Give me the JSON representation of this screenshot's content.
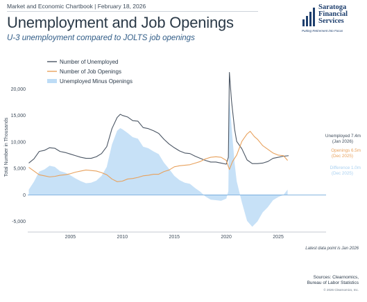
{
  "header": {
    "dateline": "Market and Economic Chartbook | February 18, 2026",
    "title": "Unemployment and Job Openings",
    "subtitle": "U-3 unemployment compared to JOLTS job openings"
  },
  "logo": {
    "line1": "Saratoga",
    "line2": "Financial",
    "line3": "Services",
    "tagline": "Putting Retirement into Focus",
    "color": "#1e3f6e"
  },
  "footer": {
    "note": "Latest data point is Jan 2026",
    "sources_line1": "Sources: Clearnomics,",
    "sources_line2": "Bureau of Labor Statistics",
    "copyright": "© 2026 Clearnomics, Inc."
  },
  "chart_data": {
    "type": "line",
    "ylabel": "Total Number in Thousands",
    "xlim": [
      2000.9,
      2029.6
    ],
    "ylim": [
      -7000,
      25000
    ],
    "x_ticks": [
      2005,
      2010,
      2015,
      2020,
      2025
    ],
    "y_ticks": [
      -5000,
      0,
      5000,
      10000,
      15000,
      20000
    ],
    "y_tick_labels": [
      "-5,000",
      "0",
      "5,000",
      "10,000",
      "15,000",
      "20,000"
    ],
    "grid": false,
    "legend_position": "top-left",
    "colors": {
      "unemployed": "#4a5563",
      "openings": "#e8a15c",
      "difference": "#bddcf6",
      "zero_line": "#5b9bd5"
    },
    "series": [
      {
        "name": "Number of Unemployed",
        "style": "line",
        "x": [
          2001.0,
          2001.5,
          2002.0,
          2002.5,
          2003.0,
          2003.5,
          2004.0,
          2004.5,
          2005.0,
          2005.5,
          2006.0,
          2006.5,
          2007.0,
          2007.5,
          2008.0,
          2008.5,
          2009.0,
          2009.5,
          2009.8,
          2010.0,
          2010.5,
          2011.0,
          2011.5,
          2012.0,
          2012.5,
          2013.0,
          2013.5,
          2014.0,
          2014.5,
          2015.0,
          2015.5,
          2016.0,
          2016.5,
          2017.0,
          2017.5,
          2018.0,
          2018.5,
          2019.0,
          2019.5,
          2020.0,
          2020.2,
          2020.3,
          2020.5,
          2020.8,
          2021.0,
          2021.5,
          2022.0,
          2022.5,
          2023.0,
          2023.5,
          2024.0,
          2024.5,
          2025.0,
          2025.5,
          2026.0
        ],
        "values": [
          6000,
          6800,
          8200,
          8400,
          8900,
          8800,
          8200,
          8000,
          7700,
          7400,
          7100,
          6900,
          6900,
          7200,
          7800,
          9100,
          12500,
          14600,
          15200,
          15000,
          14700,
          14000,
          13900,
          12700,
          12500,
          12100,
          11600,
          10500,
          9600,
          8900,
          8300,
          7900,
          7800,
          7300,
          6900,
          6500,
          6200,
          6200,
          6000,
          5800,
          7100,
          23100,
          17800,
          12400,
          10100,
          8700,
          6600,
          5900,
          5900,
          6000,
          6300,
          6900,
          7100,
          7300,
          7400
        ]
      },
      {
        "name": "Number of Job Openings",
        "style": "line",
        "x": [
          2001.0,
          2001.5,
          2002.0,
          2002.5,
          2003.0,
          2003.5,
          2004.0,
          2004.5,
          2005.0,
          2005.5,
          2006.0,
          2006.5,
          2007.0,
          2007.5,
          2008.0,
          2008.5,
          2009.0,
          2009.5,
          2010.0,
          2010.5,
          2011.0,
          2011.5,
          2012.0,
          2012.5,
          2013.0,
          2013.5,
          2014.0,
          2014.5,
          2015.0,
          2015.5,
          2016.0,
          2016.5,
          2017.0,
          2017.5,
          2018.0,
          2018.5,
          2019.0,
          2019.5,
          2020.0,
          2020.3,
          2020.6,
          2021.0,
          2021.5,
          2022.0,
          2022.3,
          2022.7,
          2023.0,
          2023.5,
          2024.0,
          2024.5,
          2025.0,
          2025.5,
          2025.9
        ],
        "values": [
          5200,
          4500,
          3800,
          3600,
          3400,
          3500,
          3700,
          3800,
          4000,
          4300,
          4500,
          4700,
          4600,
          4500,
          4200,
          3800,
          3000,
          2500,
          2600,
          3000,
          3100,
          3300,
          3600,
          3700,
          3900,
          3900,
          4400,
          4700,
          5300,
          5500,
          5600,
          5700,
          6000,
          6300,
          6800,
          7100,
          7200,
          7100,
          6500,
          4800,
          6300,
          7500,
          10100,
          11500,
          12000,
          11000,
          10500,
          9300,
          8600,
          7900,
          7500,
          7400,
          6500
        ]
      },
      {
        "name": "Unemployed Minus Openings",
        "style": "area",
        "x": [
          2001.0,
          2001.5,
          2002.0,
          2002.5,
          2003.0,
          2003.5,
          2004.0,
          2004.5,
          2005.0,
          2005.5,
          2006.0,
          2006.5,
          2007.0,
          2007.5,
          2008.0,
          2008.5,
          2009.0,
          2009.5,
          2009.8,
          2010.0,
          2010.5,
          2011.0,
          2011.5,
          2012.0,
          2012.5,
          2013.0,
          2013.5,
          2014.0,
          2014.5,
          2015.0,
          2015.5,
          2016.0,
          2016.5,
          2017.0,
          2017.5,
          2018.0,
          2018.5,
          2019.0,
          2019.5,
          2020.0,
          2020.2,
          2020.3,
          2020.5,
          2020.8,
          2021.0,
          2021.5,
          2022.0,
          2022.5,
          2023.0,
          2023.5,
          2024.0,
          2024.5,
          2025.0,
          2025.5,
          2025.9
        ],
        "values": [
          1000,
          2500,
          4400,
          4800,
          5500,
          5300,
          4500,
          4200,
          3700,
          3100,
          2600,
          2200,
          2300,
          2700,
          3600,
          5300,
          9500,
          12100,
          12600,
          12400,
          11700,
          10900,
          10600,
          9100,
          8800,
          8200,
          7700,
          6100,
          4900,
          3600,
          2800,
          2300,
          2100,
          1300,
          600,
          -300,
          -900,
          -1000,
          -1100,
          -700,
          700,
          18300,
          13000,
          6000,
          2600,
          -1400,
          -4900,
          -6000,
          -5000,
          -3300,
          -2300,
          -1000,
          -400,
          0,
          1000
        ]
      }
    ],
    "end_labels": [
      {
        "line1": "Unemployed 7.4m",
        "line2": "(Jan 2026)",
        "color": "#3d4b5a"
      },
      {
        "line1": "Openings 6.5m",
        "line2": "(Dec 2025)",
        "color": "#e8a15c"
      },
      {
        "line1": "Difference 1.0m",
        "line2": "(Dec 2025)",
        "color": "#a9d0f0"
      }
    ]
  }
}
